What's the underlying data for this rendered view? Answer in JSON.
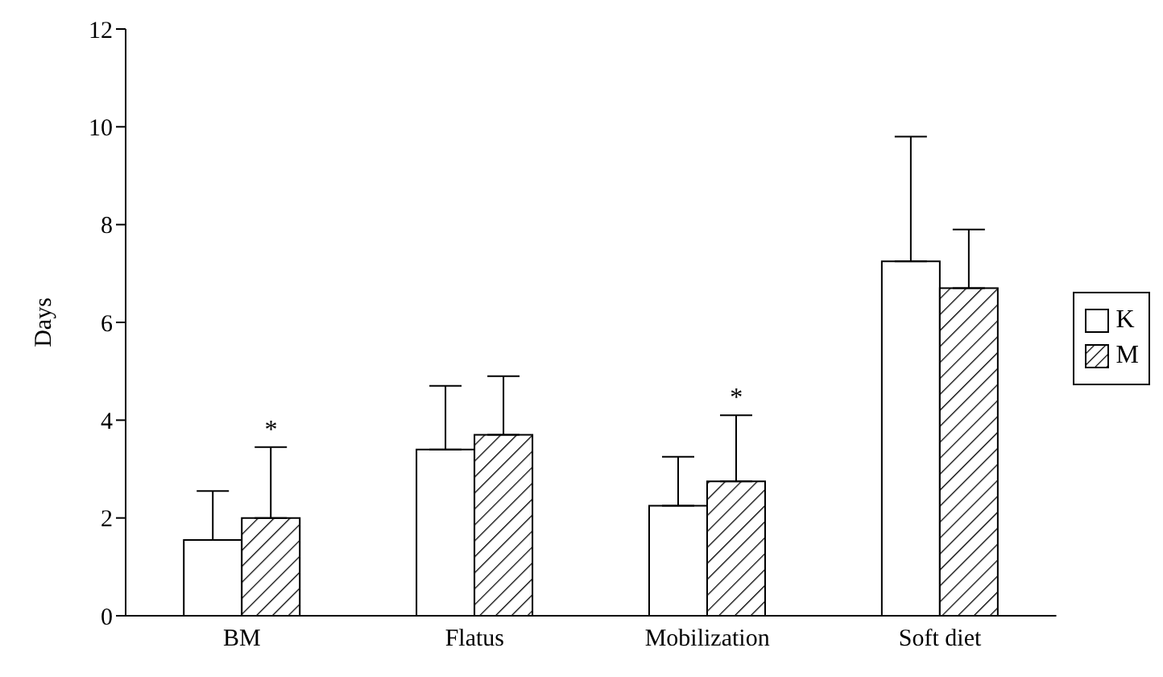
{
  "chart_data": {
    "type": "bar",
    "ylabel": "Days",
    "categories": [
      "BM",
      "Flatus",
      "Mobilization",
      "Soft diet"
    ],
    "series": [
      {
        "name": "K",
        "color": "#ffffff",
        "values": [
          1.55,
          3.4,
          2.25,
          7.25
        ],
        "errors": [
          [
            1.55,
            2.55
          ],
          [
            3.4,
            4.7
          ],
          [
            2.25,
            3.25
          ],
          [
            7.25,
            9.8
          ]
        ]
      },
      {
        "name": "M",
        "color": "#000000",
        "values": [
          2.0,
          3.7,
          2.75,
          6.7
        ],
        "errors": [
          [
            2.0,
            3.45
          ],
          [
            3.7,
            4.9
          ],
          [
            2.75,
            4.1
          ],
          [
            6.7,
            7.9
          ]
        ],
        "value_labels": [
          "*",
          null,
          "*",
          null
        ]
      }
    ],
    "ylim": [
      0,
      12
    ],
    "yticks": [
      0,
      2,
      4,
      6,
      8,
      10,
      12
    ],
    "grid": false,
    "legend": "right"
  }
}
